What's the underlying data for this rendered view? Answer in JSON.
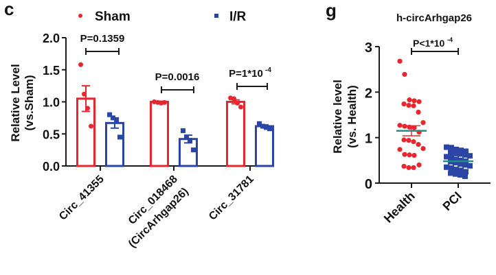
{
  "colors": {
    "sham": "#e8262e",
    "ir": "#2b45a5",
    "axis": "#1a1a1a",
    "mean_line": "#1f8f86"
  },
  "chart_data": [
    {
      "panel_label": "c",
      "type": "bar",
      "title": "",
      "xlabel": "",
      "ylabel_lines": [
        "Relative  Level",
        "(vs.Sham)"
      ],
      "ylim": [
        0,
        2.0
      ],
      "yticks": [
        0.0,
        0.5,
        1.0,
        1.5,
        2.0
      ],
      "ytick_labels": [
        "0.0",
        "0.5",
        "1.0",
        "1.5",
        "2.0"
      ],
      "legend": {
        "position": "top",
        "entries": [
          "Sham",
          "I/R"
        ]
      },
      "categories": [
        "Circ_41355",
        "Circ_018468",
        "Circ_31781"
      ],
      "category_sublabels": [
        "",
        "(CircArhgap26)",
        ""
      ],
      "series": [
        {
          "name": "Sham",
          "marker": "circle",
          "values": [
            1.05,
            1.0,
            1.0
          ],
          "sem": [
            0.2,
            0.01,
            0.03
          ],
          "points": [
            [
              1.58,
              1.12,
              0.9,
              0.62
            ],
            [
              1.0,
              0.99,
              0.98,
              0.99
            ],
            [
              1.06,
              1.05,
              0.98,
              0.92
            ]
          ]
        },
        {
          "name": "I/R",
          "marker": "square",
          "values": [
            0.67,
            0.42,
            0.62
          ],
          "sem": [
            0.08,
            0.06,
            0.02
          ],
          "points": [
            [
              0.8,
              0.75,
              0.72,
              0.45
            ],
            [
              0.55,
              0.45,
              0.4,
              0.25
            ],
            [
              0.66,
              0.62,
              0.6,
              0.58
            ]
          ]
        }
      ],
      "annotations": [
        "P=0.1359",
        "P=0.0016",
        "P=1*10",
        "-4"
      ]
    },
    {
      "panel_label": "g",
      "type": "scatter",
      "title": "h-circArhgap26",
      "ylabel_lines": [
        "Relative level",
        "(vs. Health)"
      ],
      "ylim": [
        0,
        3
      ],
      "yticks": [
        0,
        1,
        2,
        3
      ],
      "ytick_labels": [
        "0",
        "1",
        "2",
        "3"
      ],
      "categories": [
        "Health",
        "PCI"
      ],
      "series": [
        {
          "name": "Health",
          "marker": "circle",
          "mean": 1.15,
          "sem": 0.11,
          "values": [
            2.68,
            2.39,
            1.83,
            1.81,
            1.79,
            1.74,
            1.71,
            1.7,
            1.56,
            1.33,
            1.27,
            1.25,
            1.23,
            1.22,
            1.12,
            0.95,
            0.94,
            0.91,
            0.85,
            0.76,
            0.74,
            0.63,
            0.62,
            0.61,
            0.4,
            0.37,
            0.34,
            0.34
          ]
        },
        {
          "name": "PCI",
          "marker": "square",
          "mean": 0.48,
          "sem": 0.03,
          "values": [
            0.79,
            0.78,
            0.74,
            0.72,
            0.7,
            0.67,
            0.65,
            0.64,
            0.62,
            0.6,
            0.58,
            0.55,
            0.52,
            0.5,
            0.48,
            0.47,
            0.45,
            0.42,
            0.4,
            0.38,
            0.35,
            0.33,
            0.3,
            0.28,
            0.25,
            0.22,
            0.2,
            0.18,
            0.15
          ]
        }
      ],
      "annotations": [
        "P<1*10",
        "-4"
      ]
    }
  ]
}
